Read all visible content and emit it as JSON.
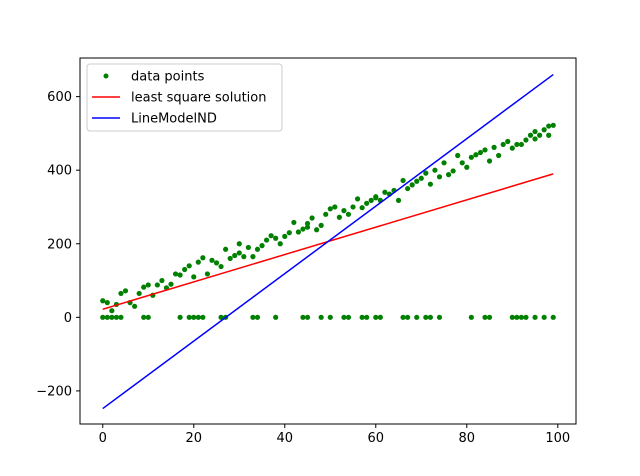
{
  "chart_data": {
    "type": "scatter",
    "title": "",
    "xlabel": "",
    "ylabel": "",
    "xlim": [
      -5,
      104
    ],
    "ylim": [
      -290,
      705
    ],
    "xticks": [
      0,
      20,
      40,
      60,
      80,
      100
    ],
    "yticks": [
      -200,
      0,
      200,
      400,
      600
    ],
    "xtick_labels": [
      "0",
      "20",
      "40",
      "60",
      "80",
      "100"
    ],
    "ytick_labels": [
      "−200",
      "0",
      "200",
      "400",
      "600"
    ],
    "grid": false,
    "legend": {
      "position": "top-left",
      "entries": [
        {
          "label": "data points",
          "marker": "dot",
          "color": "#008000"
        },
        {
          "label": "least square solution",
          "marker": "line",
          "color": "#ff0000"
        },
        {
          "label": "LineModelND",
          "marker": "line",
          "color": "#0000ff"
        }
      ]
    },
    "series": [
      {
        "name": "data points",
        "kind": "scatter",
        "color": "#008000",
        "points": [
          [
            0,
            0
          ],
          [
            1,
            0
          ],
          [
            2,
            0
          ],
          [
            3,
            0
          ],
          [
            4,
            0
          ],
          [
            9,
            0
          ],
          [
            10,
            0
          ],
          [
            17,
            0
          ],
          [
            19,
            0
          ],
          [
            20,
            0
          ],
          [
            21,
            0
          ],
          [
            22,
            0
          ],
          [
            26,
            0
          ],
          [
            27,
            0
          ],
          [
            33,
            0
          ],
          [
            34,
            0
          ],
          [
            38,
            0
          ],
          [
            44,
            0
          ],
          [
            45,
            0
          ],
          [
            48,
            0
          ],
          [
            50,
            0
          ],
          [
            53,
            0
          ],
          [
            54,
            0
          ],
          [
            57,
            0
          ],
          [
            58,
            0
          ],
          [
            60,
            0
          ],
          [
            61,
            0
          ],
          [
            66,
            0
          ],
          [
            67,
            0
          ],
          [
            69,
            0
          ],
          [
            71,
            0
          ],
          [
            72,
            0
          ],
          [
            74,
            0
          ],
          [
            81,
            0
          ],
          [
            84,
            0
          ],
          [
            85,
            0
          ],
          [
            90,
            0
          ],
          [
            91,
            0
          ],
          [
            92,
            0
          ],
          [
            93,
            0
          ],
          [
            95,
            0
          ],
          [
            97,
            0
          ],
          [
            99,
            0
          ],
          [
            0,
            45
          ],
          [
            1,
            40
          ],
          [
            2,
            18
          ],
          [
            3,
            35
          ],
          [
            4,
            65
          ],
          [
            5,
            72
          ],
          [
            6,
            40
          ],
          [
            7,
            30
          ],
          [
            8,
            65
          ],
          [
            9,
            82
          ],
          [
            10,
            88
          ],
          [
            11,
            60
          ],
          [
            12,
            88
          ],
          [
            13,
            100
          ],
          [
            14,
            80
          ],
          [
            15,
            90
          ],
          [
            16,
            118
          ],
          [
            17,
            115
          ],
          [
            18,
            130
          ],
          [
            19,
            140
          ],
          [
            20,
            110
          ],
          [
            21,
            150
          ],
          [
            22,
            162
          ],
          [
            23,
            118
          ],
          [
            24,
            155
          ],
          [
            25,
            148
          ],
          [
            26,
            138
          ],
          [
            27,
            185
          ],
          [
            28,
            160
          ],
          [
            29,
            168
          ],
          [
            30,
            175
          ],
          [
            31,
            165
          ],
          [
            32,
            190
          ],
          [
            33,
            165
          ],
          [
            34,
            185
          ],
          [
            35,
            195
          ],
          [
            36,
            210
          ],
          [
            37,
            222
          ],
          [
            38,
            215
          ],
          [
            39,
            200
          ],
          [
            40,
            220
          ],
          [
            41,
            230
          ],
          [
            42,
            258
          ],
          [
            43,
            232
          ],
          [
            44,
            240
          ],
          [
            45,
            245
          ],
          [
            46,
            270
          ],
          [
            47,
            238
          ],
          [
            48,
            250
          ],
          [
            49,
            280
          ],
          [
            50,
            295
          ],
          [
            51,
            300
          ],
          [
            52,
            272
          ],
          [
            53,
            290
          ],
          [
            54,
            280
          ],
          [
            55,
            300
          ],
          [
            56,
            322
          ],
          [
            57,
            298
          ],
          [
            58,
            310
          ],
          [
            59,
            318
          ],
          [
            60,
            328
          ],
          [
            61,
            318
          ],
          [
            62,
            340
          ],
          [
            63,
            335
          ],
          [
            64,
            345
          ],
          [
            65,
            318
          ],
          [
            66,
            372
          ],
          [
            67,
            350
          ],
          [
            68,
            360
          ],
          [
            69,
            370
          ],
          [
            70,
            378
          ],
          [
            71,
            392
          ],
          [
            72,
            362
          ],
          [
            73,
            400
          ],
          [
            74,
            382
          ],
          [
            75,
            420
          ],
          [
            76,
            388
          ],
          [
            77,
            398
          ],
          [
            78,
            440
          ],
          [
            79,
            420
          ],
          [
            80,
            408
          ],
          [
            81,
            435
          ],
          [
            82,
            442
          ],
          [
            83,
            448
          ],
          [
            84,
            455
          ],
          [
            85,
            425
          ],
          [
            86,
            462
          ],
          [
            87,
            440
          ],
          [
            88,
            470
          ],
          [
            89,
            478
          ],
          [
            90,
            460
          ],
          [
            91,
            470
          ],
          [
            92,
            470
          ],
          [
            93,
            482
          ],
          [
            94,
            495
          ],
          [
            95,
            485
          ],
          [
            96,
            495
          ],
          [
            97,
            510
          ],
          [
            98,
            495
          ],
          [
            99,
            522
          ],
          [
            98,
            520
          ],
          [
            95,
            505
          ],
          [
            60,
            325
          ],
          [
            45,
            255
          ],
          [
            30,
            200
          ]
        ]
      },
      {
        "name": "least square solution",
        "kind": "line",
        "color": "#ff0000",
        "points": [
          [
            0,
            22
          ],
          [
            99,
            390
          ]
        ]
      },
      {
        "name": "LineModelND",
        "kind": "line",
        "color": "#0000ff",
        "points": [
          [
            0,
            -248
          ],
          [
            99,
            660
          ]
        ]
      }
    ]
  }
}
